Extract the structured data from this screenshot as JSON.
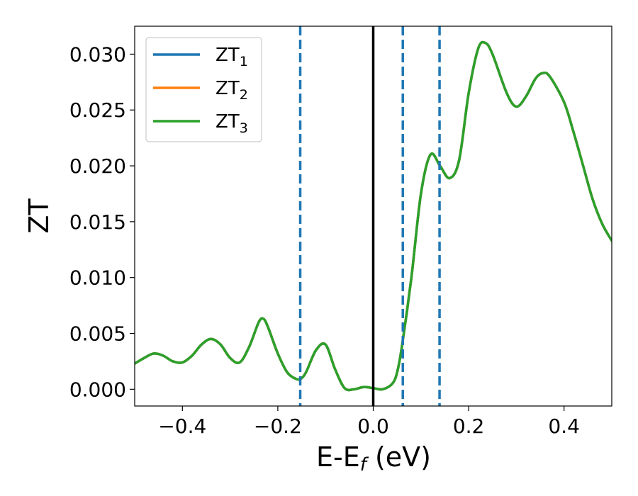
{
  "chart_data": {
    "type": "line",
    "xlabel": "E-E",
    "xlabel_sub": "f",
    "xlabel_unit": " (eV)",
    "ylabel": "ZT",
    "xlim": [
      -0.5,
      0.5
    ],
    "ylim": [
      -0.0015,
      0.0325
    ],
    "xticks": [
      -0.4,
      -0.2,
      0.0,
      0.2,
      0.4
    ],
    "xtick_labels": [
      "−0.4",
      "−0.2",
      "0.0",
      "0.2",
      "0.4"
    ],
    "yticks": [
      0.0,
      0.005,
      0.01,
      0.015,
      0.02,
      0.025,
      0.03
    ],
    "ytick_labels": [
      "0.000",
      "0.005",
      "0.010",
      "0.015",
      "0.020",
      "0.025",
      "0.030"
    ],
    "grid": false,
    "legend_position": "top-left",
    "x": [
      -0.5,
      -0.48,
      -0.46,
      -0.44,
      -0.42,
      -0.4,
      -0.38,
      -0.36,
      -0.34,
      -0.32,
      -0.3,
      -0.28,
      -0.26,
      -0.24,
      -0.23,
      -0.22,
      -0.2,
      -0.18,
      -0.16,
      -0.15,
      -0.14,
      -0.12,
      -0.1,
      -0.08,
      -0.06,
      -0.04,
      -0.02,
      0.0,
      0.02,
      0.04,
      0.05,
      0.06,
      0.08,
      0.1,
      0.12,
      0.14,
      0.16,
      0.18,
      0.2,
      0.22,
      0.235,
      0.25,
      0.28,
      0.3,
      0.32,
      0.34,
      0.355,
      0.37,
      0.4,
      0.42,
      0.44,
      0.46,
      0.48,
      0.5
    ],
    "series": [
      {
        "name": "ZT",
        "name_sub": "1",
        "color": "#1f77b4",
        "values": [
          0.0023,
          0.0028,
          0.0032,
          0.003,
          0.0025,
          0.0024,
          0.003,
          0.004,
          0.0045,
          0.004,
          0.0028,
          0.0024,
          0.0038,
          0.006,
          0.0063,
          0.0055,
          0.0032,
          0.0015,
          0.0009,
          0.001,
          0.0016,
          0.0035,
          0.004,
          0.0018,
          0.0001,
          0.0,
          0.0002,
          0.0001,
          0.0,
          0.0005,
          0.0015,
          0.0038,
          0.01,
          0.0175,
          0.021,
          0.02,
          0.0189,
          0.0205,
          0.0265,
          0.0305,
          0.031,
          0.03,
          0.0265,
          0.0253,
          0.0262,
          0.0278,
          0.0283,
          0.028,
          0.0257,
          0.023,
          0.02,
          0.017,
          0.0148,
          0.0133
        ]
      },
      {
        "name": "ZT",
        "name_sub": "2",
        "color": "#ff7f0e",
        "values": [
          0.0023,
          0.0028,
          0.0032,
          0.003,
          0.0025,
          0.0024,
          0.003,
          0.004,
          0.0045,
          0.004,
          0.0028,
          0.0024,
          0.0038,
          0.006,
          0.0063,
          0.0055,
          0.0032,
          0.0015,
          0.0009,
          0.001,
          0.0016,
          0.0035,
          0.004,
          0.0018,
          0.0001,
          0.0,
          0.0002,
          0.0001,
          0.0,
          0.0005,
          0.0015,
          0.0038,
          0.01,
          0.0175,
          0.021,
          0.02,
          0.0189,
          0.0205,
          0.0265,
          0.0305,
          0.031,
          0.03,
          0.0265,
          0.0253,
          0.0262,
          0.0278,
          0.0283,
          0.028,
          0.0257,
          0.023,
          0.02,
          0.017,
          0.0148,
          0.0133
        ]
      },
      {
        "name": "ZT",
        "name_sub": "3",
        "color": "#2ca02c",
        "values": [
          0.0023,
          0.0028,
          0.0032,
          0.003,
          0.0025,
          0.0024,
          0.003,
          0.004,
          0.0045,
          0.004,
          0.0028,
          0.0024,
          0.0038,
          0.006,
          0.0063,
          0.0055,
          0.0032,
          0.0015,
          0.0009,
          0.001,
          0.0016,
          0.0035,
          0.004,
          0.0018,
          0.0001,
          0.0,
          0.0002,
          0.0001,
          0.0,
          0.0005,
          0.0015,
          0.0038,
          0.01,
          0.0175,
          0.021,
          0.02,
          0.0189,
          0.0205,
          0.0265,
          0.0305,
          0.031,
          0.03,
          0.0265,
          0.0253,
          0.0262,
          0.0278,
          0.0283,
          0.028,
          0.0257,
          0.023,
          0.02,
          0.017,
          0.0148,
          0.0133
        ]
      }
    ],
    "vlines": [
      {
        "x": 0.0,
        "style": "solid",
        "color": "#000000"
      },
      {
        "x": -0.153,
        "style": "dashed",
        "color": "#1f77b4"
      },
      {
        "x": 0.062,
        "style": "dashed",
        "color": "#1f77b4"
      },
      {
        "x": 0.139,
        "style": "dashed",
        "color": "#1f77b4"
      }
    ]
  }
}
